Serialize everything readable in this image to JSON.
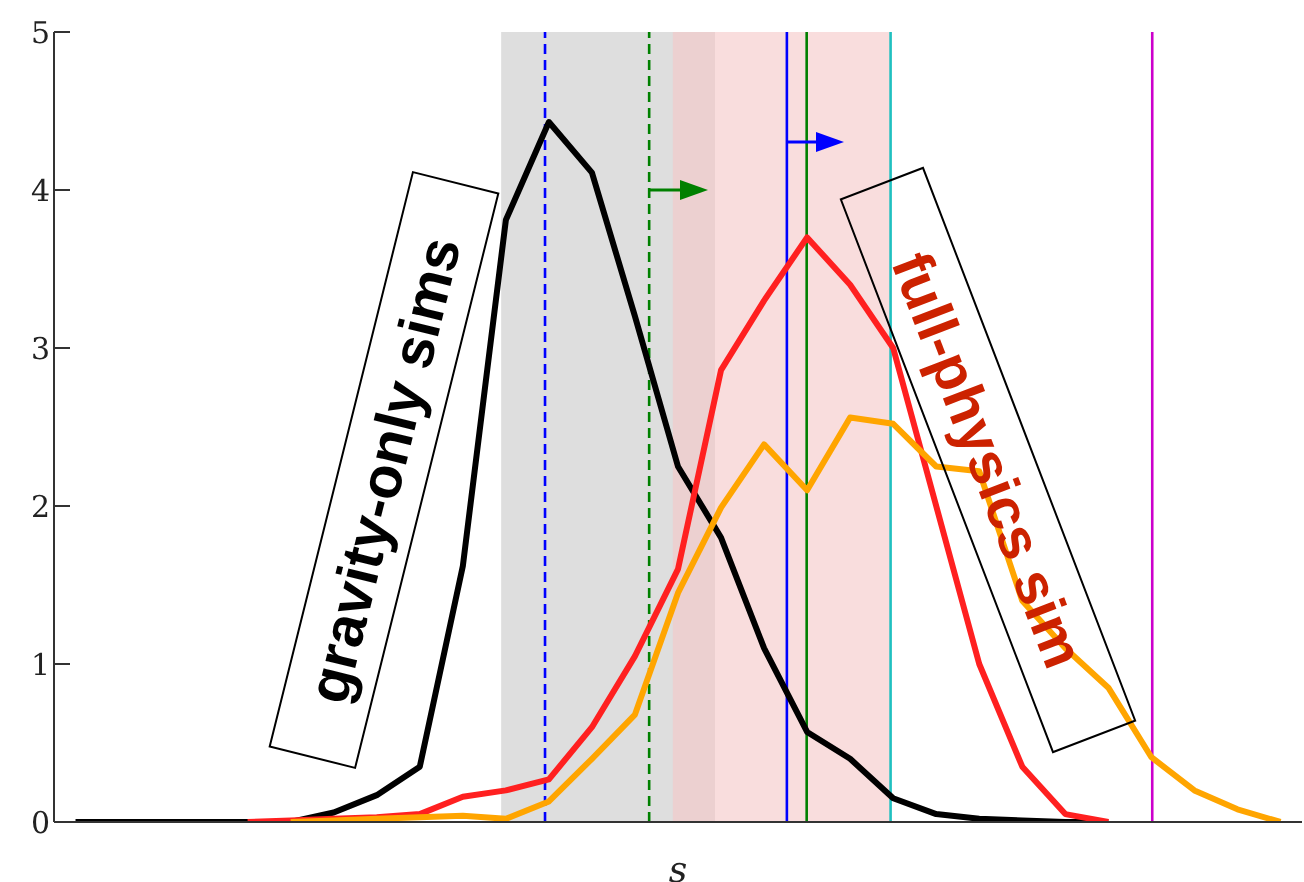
{
  "chart_data": {
    "type": "line",
    "xlabel": "s",
    "categories": [
      null,
      null,
      null,
      null,
      null,
      null,
      null,
      null,
      null,
      null,
      null,
      null,
      null,
      null,
      null,
      null,
      null,
      null,
      null,
      null,
      null,
      null,
      null,
      null,
      null,
      null,
      null,
      null,
      null
    ],
    "ylim": [
      0,
      5
    ],
    "yticks": [
      0,
      1,
      2,
      3,
      4,
      5
    ],
    "tick_labels": "y",
    "marker": "none",
    "series": [
      {
        "color": "#000000",
        "values": [
          0,
          0,
          0,
          0,
          0,
          0,
          0.06,
          0.17,
          0.35,
          1.62,
          3.81,
          4.43,
          4.11,
          3.2,
          2.25,
          1.8,
          1.1,
          0.57,
          0.4,
          0.15,
          0.05,
          0.02,
          0.01,
          0,
          0,
          null,
          null,
          null,
          null
        ]
      },
      {
        "color": "#ff2020",
        "values": [
          null,
          null,
          null,
          null,
          0,
          0.01,
          0.02,
          0.03,
          0.05,
          0.16,
          0.2,
          0.27,
          0.6,
          1.05,
          1.6,
          2.86,
          3.3,
          3.7,
          3.4,
          3.0,
          2.0,
          1.0,
          0.35,
          0.05,
          0,
          null,
          null,
          null,
          null
        ]
      },
      {
        "color": "#ffa500",
        "values": [
          null,
          null,
          null,
          null,
          null,
          0,
          0.01,
          0.02,
          0.03,
          0.04,
          0.02,
          0.13,
          0.4,
          0.68,
          1.45,
          1.99,
          2.39,
          2.1,
          2.56,
          2.52,
          2.25,
          2.22,
          1.4,
          1.1,
          0.85,
          0.41,
          0.2,
          0.08,
          0
        ]
      }
    ],
    "annotations": [
      "gravity-only sims",
      "full-physics sim"
    ]
  }
}
